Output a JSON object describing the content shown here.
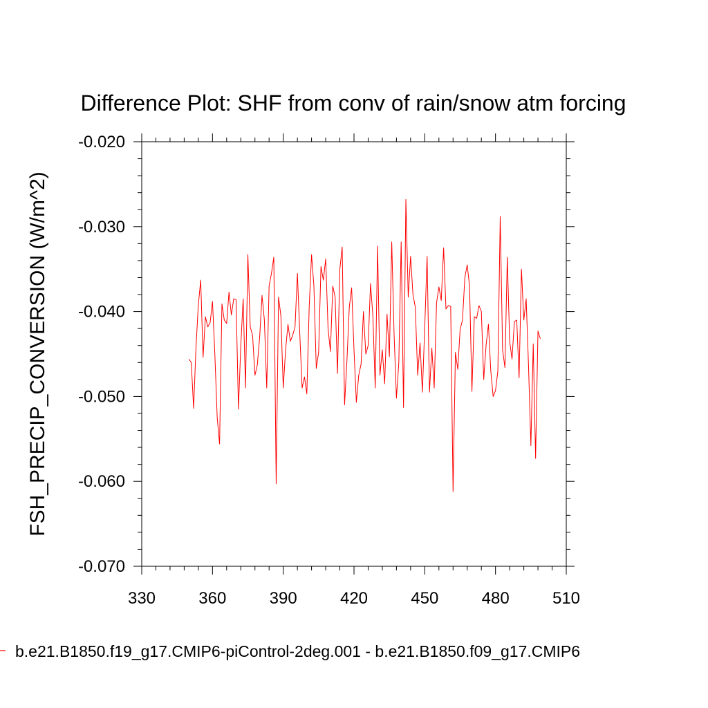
{
  "chart_data": {
    "type": "line",
    "title": "Difference Plot: SHF from conv of rain/snow atm forcing",
    "xlabel": "",
    "ylabel": "FSH_PRECIP_CONVERSION  (W/m^2)",
    "xlim": [
      330,
      510
    ],
    "ylim": [
      -0.07,
      -0.02
    ],
    "x_ticks": [
      330,
      360,
      390,
      420,
      450,
      480,
      510
    ],
    "x_tick_labels": [
      "330",
      "360",
      "390",
      "420",
      "450",
      "480",
      "510"
    ],
    "y_ticks": [
      -0.02,
      -0.03,
      -0.04,
      -0.05,
      -0.06,
      -0.07
    ],
    "y_tick_labels": [
      "-0.020",
      "-0.030",
      "-0.040",
      "-0.050",
      "-0.060",
      "-0.070"
    ],
    "legend": {
      "placement": "bottom",
      "entry": "b.e21.B1850.f19_g17.CMIP6-piControl-2deg.001 - b.e21.B1850.f09_g17.CMIP6"
    },
    "series": [
      {
        "name": "b.e21.B1850.f19_g17.CMIP6-piControl-2deg.001 - b.e21.B1850.f09_g17.CMIP6",
        "color": "#ff0000",
        "x": [
          350,
          351,
          352,
          353,
          354,
          355,
          356,
          357,
          358,
          359,
          360,
          361,
          362,
          363,
          364,
          365,
          366,
          367,
          368,
          369,
          370,
          371,
          372,
          373,
          374,
          375,
          376,
          377,
          378,
          379,
          380,
          381,
          382,
          383,
          384,
          385,
          386,
          387,
          388,
          389,
          390,
          391,
          392,
          393,
          394,
          395,
          396,
          397,
          398,
          399,
          400,
          401,
          402,
          403,
          404,
          405,
          406,
          407,
          408,
          409,
          410,
          411,
          412,
          413,
          414,
          415,
          416,
          417,
          418,
          419,
          420,
          421,
          422,
          423,
          424,
          425,
          426,
          427,
          428,
          429,
          430,
          431,
          432,
          433,
          434,
          435,
          436,
          437,
          438,
          439,
          440,
          441,
          442,
          443,
          444,
          445,
          446,
          447,
          448,
          449,
          450,
          451,
          452,
          453,
          454,
          455,
          456,
          457,
          458,
          459,
          460,
          461,
          462,
          463,
          464,
          465,
          466,
          467,
          468,
          469,
          470,
          471,
          472,
          473,
          474,
          475,
          476,
          477,
          478,
          479,
          480,
          481,
          482,
          483,
          484,
          485,
          486,
          487,
          488,
          489,
          490,
          491,
          492,
          493,
          494,
          495,
          496,
          497,
          498,
          499
        ],
        "values": [
          -0.0456,
          -0.046,
          -0.0514,
          -0.0442,
          -0.0392,
          -0.0363,
          -0.0454,
          -0.0406,
          -0.0418,
          -0.0413,
          -0.0388,
          -0.045,
          -0.0525,
          -0.0556,
          -0.0391,
          -0.041,
          -0.0414,
          -0.0377,
          -0.0404,
          -0.0385,
          -0.0386,
          -0.0515,
          -0.044,
          -0.0385,
          -0.049,
          -0.0333,
          -0.0418,
          -0.0428,
          -0.0475,
          -0.0463,
          -0.043,
          -0.0381,
          -0.041,
          -0.049,
          -0.037,
          -0.0355,
          -0.0336,
          -0.0603,
          -0.0383,
          -0.0405,
          -0.049,
          -0.0445,
          -0.0415,
          -0.0435,
          -0.0428,
          -0.0418,
          -0.0355,
          -0.0425,
          -0.049,
          -0.0477,
          -0.0497,
          -0.0395,
          -0.0333,
          -0.037,
          -0.0467,
          -0.0448,
          -0.0347,
          -0.0363,
          -0.0338,
          -0.042,
          -0.0447,
          -0.037,
          -0.0383,
          -0.0473,
          -0.035,
          -0.0324,
          -0.051,
          -0.0458,
          -0.0395,
          -0.0372,
          -0.0445,
          -0.0507,
          -0.0475,
          -0.0462,
          -0.04,
          -0.045,
          -0.044,
          -0.0367,
          -0.0405,
          -0.049,
          -0.0323,
          -0.0475,
          -0.0445,
          -0.0485,
          -0.0403,
          -0.0453,
          -0.0318,
          -0.0427,
          -0.0502,
          -0.046,
          -0.0318,
          -0.0513,
          -0.0268,
          -0.0383,
          -0.0335,
          -0.038,
          -0.0395,
          -0.0475,
          -0.0437,
          -0.0495,
          -0.0418,
          -0.0335,
          -0.0495,
          -0.0443,
          -0.049,
          -0.039,
          -0.0371,
          -0.0387,
          -0.0325,
          -0.0397,
          -0.0393,
          -0.0394,
          -0.0612,
          -0.0448,
          -0.0468,
          -0.0421,
          -0.041,
          -0.036,
          -0.0345,
          -0.037,
          -0.0494,
          -0.0406,
          -0.0408,
          -0.0393,
          -0.04,
          -0.048,
          -0.044,
          -0.0415,
          -0.047,
          -0.05,
          -0.0493,
          -0.047,
          -0.0288,
          -0.0445,
          -0.0466,
          -0.0336,
          -0.0435,
          -0.0456,
          -0.0412,
          -0.041,
          -0.0478,
          -0.035,
          -0.041,
          -0.0385,
          -0.0464,
          -0.0558,
          -0.0438,
          -0.0573,
          -0.0423,
          -0.0432
        ]
      }
    ]
  }
}
